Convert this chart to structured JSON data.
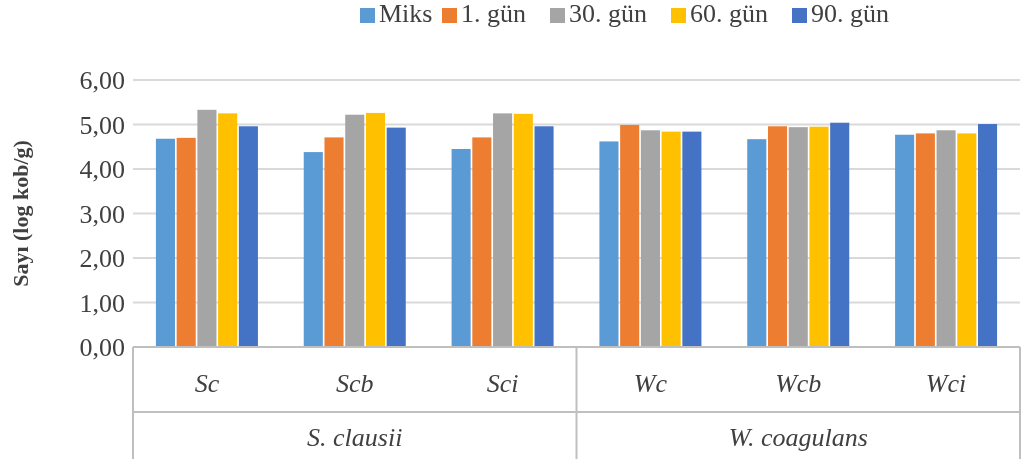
{
  "chart_data": {
    "type": "bar",
    "ylabel": "Sayı (log kob/g)",
    "categories": [
      "Sc",
      "Scb",
      "Sci",
      "Wc",
      "Wcb",
      "Wci"
    ],
    "annotations": [
      "S. clausii",
      "W. coagulans"
    ],
    "series": [
      {
        "name": "Miks",
        "color": "#5b9bd5",
        "values": [
          4.68,
          4.38,
          4.45,
          4.62,
          4.67,
          4.77
        ]
      },
      {
        "name": "1. gün",
        "color": "#ed7d31",
        "values": [
          4.7,
          4.71,
          4.71,
          4.99,
          4.96,
          4.8
        ]
      },
      {
        "name": "30. gün",
        "color": "#a5a5a5",
        "values": [
          5.33,
          5.22,
          5.25,
          4.87,
          4.94,
          4.87
        ]
      },
      {
        "name": "60. gün",
        "color": "#ffc000",
        "values": [
          5.25,
          5.26,
          5.24,
          4.84,
          4.95,
          4.8
        ]
      },
      {
        "name": "90. gün",
        "color": "#4472c4",
        "values": [
          4.96,
          4.93,
          4.96,
          4.84,
          5.04,
          5.01
        ]
      }
    ],
    "ylim": [
      0,
      6
    ],
    "yticks": [
      {
        "value": 0,
        "label": "0,00"
      },
      {
        "value": 1,
        "label": "1,00"
      },
      {
        "value": 2,
        "label": "2,00"
      },
      {
        "value": 3,
        "label": "3,00"
      },
      {
        "value": 4,
        "label": "4,00"
      },
      {
        "value": 5,
        "label": "5,00"
      },
      {
        "value": 6,
        "label": "6,00"
      }
    ],
    "grid": "y",
    "legend": "top"
  }
}
